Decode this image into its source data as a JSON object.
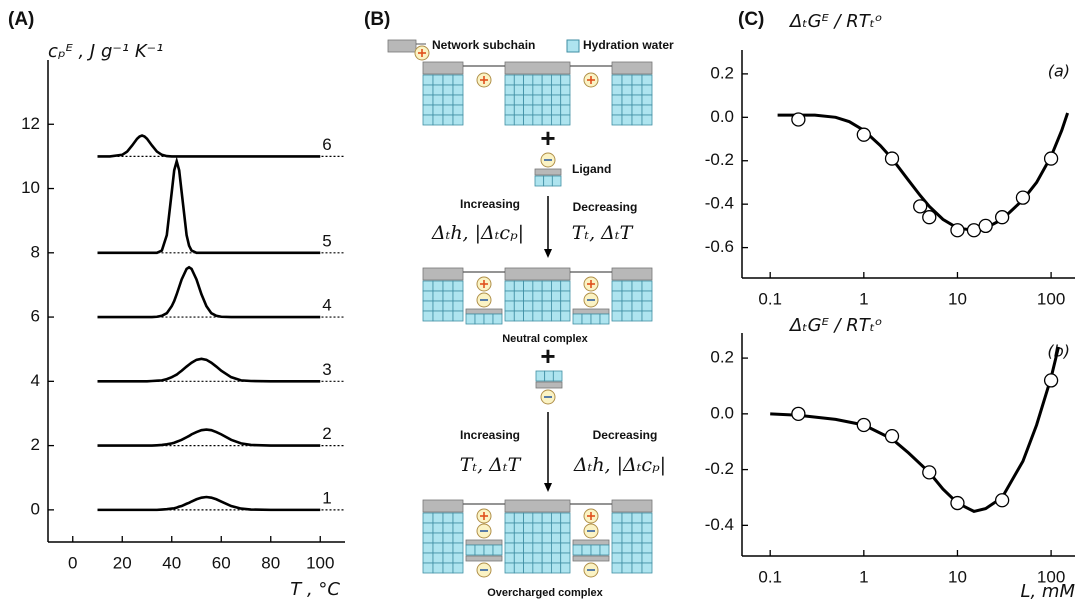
{
  "chart_data": [
    {
      "type": "line",
      "label": "(A)",
      "ylabel": "cₚᴱ , J g⁻¹ K⁻¹",
      "xlabel": "T , °C",
      "xlim": [
        -10,
        110
      ],
      "ylim": [
        -1,
        14
      ],
      "xticks": [
        0,
        20,
        40,
        60,
        80,
        100
      ],
      "yticks": [
        0,
        2,
        4,
        6,
        8,
        10,
        12
      ],
      "x": [
        10,
        15,
        20,
        22,
        24,
        26,
        27,
        28,
        29,
        30,
        32,
        34,
        36,
        38,
        40,
        41,
        42,
        43,
        44,
        46,
        47,
        48,
        50,
        52,
        54,
        56,
        58,
        60,
        64,
        68,
        72,
        80,
        90,
        100
      ],
      "series": [
        {
          "name": "1",
          "color": "#000000",
          "baseline": 0,
          "values": [
            0,
            0,
            0,
            0,
            0,
            0,
            0,
            0,
            0,
            0,
            0,
            0,
            0.01,
            0.02,
            0.04,
            0.05,
            0.07,
            0.1,
            0.12,
            0.19,
            0.22,
            0.26,
            0.33,
            0.38,
            0.4,
            0.38,
            0.33,
            0.26,
            0.12,
            0.04,
            0.01,
            0,
            0,
            0
          ]
        },
        {
          "name": "2",
          "color": "#000000",
          "baseline": 2,
          "values": [
            2,
            2,
            2,
            2,
            2,
            2,
            2,
            2,
            2,
            2,
            2,
            2.01,
            2.02,
            2.04,
            2.07,
            2.09,
            2.12,
            2.15,
            2.18,
            2.26,
            2.3,
            2.35,
            2.42,
            2.48,
            2.5,
            2.48,
            2.42,
            2.35,
            2.18,
            2.07,
            2.02,
            2,
            2,
            2
          ]
        },
        {
          "name": "3",
          "color": "#000000",
          "baseline": 4,
          "values": [
            4,
            4,
            4,
            4,
            4,
            4,
            4,
            4,
            4,
            4,
            4.01,
            4.02,
            4.03,
            4.07,
            4.13,
            4.17,
            4.21,
            4.27,
            4.33,
            4.46,
            4.52,
            4.58,
            4.67,
            4.7,
            4.67,
            4.58,
            4.46,
            4.33,
            4.13,
            4.03,
            4.01,
            4,
            4,
            4
          ]
        },
        {
          "name": "4",
          "color": "#000000",
          "baseline": 6,
          "values": [
            6,
            6,
            6,
            6,
            6,
            6,
            6,
            6,
            6,
            6,
            6,
            6.01,
            6.04,
            6.12,
            6.34,
            6.5,
            6.71,
            6.94,
            7.17,
            7.5,
            7.55,
            7.5,
            7.17,
            6.71,
            6.34,
            6.12,
            6.04,
            6.01,
            6,
            6,
            6,
            6,
            6,
            6
          ]
        },
        {
          "name": "5",
          "color": "#000000",
          "baseline": 8,
          "values": [
            8,
            8,
            8,
            8,
            8,
            8,
            8,
            8,
            8,
            8,
            8,
            8,
            8.07,
            8.55,
            9.89,
            10.57,
            10.85,
            10.57,
            9.89,
            8.55,
            8.22,
            8.07,
            8,
            8,
            8,
            8,
            8,
            8,
            8,
            8,
            8,
            8,
            8,
            8
          ]
        },
        {
          "name": "6",
          "color": "#000000",
          "baseline": 11,
          "values": [
            11,
            11,
            11.05,
            11.15,
            11.34,
            11.55,
            11.62,
            11.65,
            11.62,
            11.55,
            11.34,
            11.15,
            11.05,
            11.01,
            11,
            11,
            11,
            11,
            11,
            11,
            11,
            11,
            11,
            11,
            11,
            11,
            11,
            11,
            11,
            11,
            11,
            11,
            11,
            11
          ]
        }
      ]
    },
    {
      "type": "scatter",
      "panel_label": "(C)",
      "label": "(a)",
      "ylabel": "ΔₜGᴱ / RTₜᵒ",
      "xscale": "log",
      "xlim": [
        0.05,
        180
      ],
      "ylim": [
        -0.74,
        0.31
      ],
      "xticks": [
        0.1,
        1,
        10,
        100
      ],
      "yticks": [
        0.2,
        {
          "value": 0,
          "label": "0.0"
        },
        -0.2,
        -0.4,
        -0.6
      ],
      "color": "#000000",
      "x": [
        0.2,
        1,
        2,
        4,
        5,
        10,
        15,
        20,
        30,
        50,
        100
      ],
      "values": [
        -0.01,
        -0.08,
        -0.19,
        -0.41,
        -0.46,
        -0.52,
        -0.52,
        -0.5,
        -0.46,
        -0.37,
        -0.19
      ],
      "fit": {
        "x": [
          0.12,
          0.2,
          0.3,
          0.5,
          0.7,
          1,
          1.5,
          2,
          3,
          4,
          5,
          7,
          10,
          15,
          20,
          30,
          50,
          70,
          100,
          130,
          150
        ],
        "values": [
          0.01,
          0.01,
          0.01,
          0,
          -0.02,
          -0.06,
          -0.13,
          -0.19,
          -0.29,
          -0.36,
          -0.41,
          -0.47,
          -0.51,
          -0.52,
          -0.51,
          -0.47,
          -0.38,
          -0.3,
          -0.18,
          -0.06,
          0.02
        ]
      }
    },
    {
      "type": "scatter",
      "label": "(b)",
      "ylabel": "ΔₜGᴱ / RTₜᵒ",
      "xlabel": "L, mM",
      "xscale": "log",
      "xlim": [
        0.05,
        180
      ],
      "ylim": [
        -0.51,
        0.29
      ],
      "xticks": [
        0.1,
        1,
        10,
        100
      ],
      "yticks": [
        0.2,
        {
          "value": 0,
          "label": "0.0"
        },
        -0.2,
        -0.4
      ],
      "color": "#000000",
      "x": [
        0.2,
        1,
        2,
        5,
        10,
        30,
        100
      ],
      "values": [
        0,
        -0.04,
        -0.08,
        -0.21,
        -0.32,
        -0.31,
        0.12
      ],
      "fit": {
        "x": [
          0.1,
          0.2,
          0.5,
          1,
          2,
          3,
          5,
          7,
          10,
          15,
          20,
          30,
          50,
          70,
          100,
          120
        ],
        "values": [
          0,
          -0.005,
          -0.02,
          -0.04,
          -0.09,
          -0.14,
          -0.21,
          -0.27,
          -0.32,
          -0.35,
          -0.34,
          -0.3,
          -0.17,
          -0.04,
          0.13,
          0.24
        ]
      }
    }
  ],
  "diagram": {
    "label": "(B)",
    "legend": [
      "Network subchain",
      "Hydration water"
    ],
    "ligand": "Ligand",
    "plus_1": "+",
    "step_1": {
      "left_label": "Increasing",
      "left_formula": "Δₜh, |Δₜcₚ|",
      "right_label": "Decreasing",
      "right_formula": "Tₜ, ΔₜT"
    },
    "neutral": "Neutral complex",
    "plus_2": "+",
    "step_2": {
      "left_label": "Increasing",
      "left_formula": "Tₜ, ΔₜT",
      "right_label": "Decreasing",
      "right_formula": "Δₜh, |Δₜcₚ|"
    },
    "overcharged": "Overcharged complex"
  }
}
